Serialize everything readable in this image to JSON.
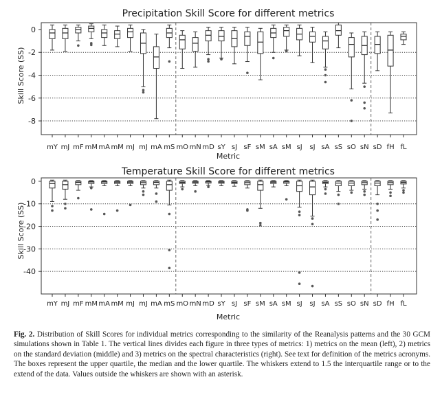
{
  "figure_label": "Fig. 2.",
  "caption": "Distribution of Skill Scores for individual metrics corresponding to the similarity of the Reanalysis patterns and the 30 GCM simulations shown in Table 1. The vertical lines divides each figure in three types of metrics: 1) metrics on the mean (left), 2) metrics on the standard deviation (middle) and 3) metrics on the spectral characteristics (right). See text for definition of the metrics acronyms. The boxes represent the upper quartile, the median and the lower quartile. The whiskers extend to 1.5 the interquartile range or to the extend of the data. Values outside the whiskers are shown with an asterisk.",
  "chart_data": [
    {
      "type": "box",
      "title": "Precipitation Skill Score for different metrics",
      "xlabel": "Metric",
      "ylabel": "Skill Score (SS)",
      "ylim": [
        -9.2,
        0.6
      ],
      "yticks": [
        0,
        -2,
        -4,
        -6,
        -8
      ],
      "grid": "dotted horizontal at ticks",
      "separators_after_index": [
        9,
        24
      ],
      "categories": [
        "mY",
        "mJ",
        "mF",
        "mM",
        "mA",
        "mM",
        "mJ",
        "mJ",
        "mA",
        "mS",
        "mO",
        "mN",
        "mD",
        "sY",
        "sJ",
        "sF",
        "sM",
        "sA",
        "sM",
        "sJ",
        "sJ",
        "sA",
        "sS",
        "sO",
        "sN",
        "sD",
        "fH",
        "fL"
      ],
      "boxes": [
        {
          "wlo": -1.8,
          "q1": -0.8,
          "med": -0.3,
          "q3": 0.0,
          "whi": 0.4,
          "out": []
        },
        {
          "wlo": -1.9,
          "q1": -0.8,
          "med": -0.3,
          "q3": 0.1,
          "whi": 0.4,
          "out": []
        },
        {
          "wlo": -1.0,
          "q1": -0.3,
          "med": 0.0,
          "q3": 0.2,
          "whi": 0.4,
          "out": [
            -1.4
          ]
        },
        {
          "wlo": -0.8,
          "q1": -0.2,
          "med": 0.1,
          "q3": 0.3,
          "whi": 0.5,
          "out": [
            -1.2,
            -1.35
          ]
        },
        {
          "wlo": -1.4,
          "q1": -0.7,
          "med": -0.3,
          "q3": 0.0,
          "whi": 0.4,
          "out": []
        },
        {
          "wlo": -1.5,
          "q1": -0.8,
          "med": -0.4,
          "q3": -0.1,
          "whi": 0.3,
          "out": []
        },
        {
          "wlo": -1.9,
          "q1": -0.7,
          "med": -0.2,
          "q3": 0.1,
          "whi": 0.4,
          "out": []
        },
        {
          "wlo": -5.0,
          "q1": -2.1,
          "med": -1.2,
          "q3": -0.3,
          "whi": 0.0,
          "out": [
            -5.3,
            -5.5
          ]
        },
        {
          "wlo": -7.8,
          "q1": -3.4,
          "med": -2.4,
          "q3": -1.5,
          "whi": -0.4,
          "out": []
        },
        {
          "wlo": -1.6,
          "q1": -0.7,
          "med": -0.3,
          "q3": 0.1,
          "whi": 0.4,
          "out": [
            -2.8
          ]
        },
        {
          "wlo": -3.4,
          "q1": -1.7,
          "med": -0.9,
          "q3": -0.5,
          "whi": -0.1,
          "out": []
        },
        {
          "wlo": -3.3,
          "q1": -1.9,
          "med": -1.2,
          "q3": -0.7,
          "whi": -0.2,
          "out": []
        },
        {
          "wlo": -2.2,
          "q1": -1.0,
          "med": -0.5,
          "q3": -0.1,
          "whi": 0.2,
          "out": [
            -2.6,
            -2.8
          ]
        },
        {
          "wlo": -2.5,
          "q1": -1.0,
          "med": -0.6,
          "q3": -0.1,
          "whi": 0.2,
          "out": [
            -2.6
          ]
        },
        {
          "wlo": -3.0,
          "q1": -1.5,
          "med": -0.8,
          "q3": -0.1,
          "whi": 0.2,
          "out": []
        },
        {
          "wlo": -2.8,
          "q1": -1.4,
          "med": -0.6,
          "q3": -0.2,
          "whi": 0.2,
          "out": [
            -3.8
          ]
        },
        {
          "wlo": -4.4,
          "q1": -2.1,
          "med": -1.1,
          "q3": -0.2,
          "whi": 0.1,
          "out": []
        },
        {
          "wlo": -2.0,
          "q1": -0.7,
          "med": -0.3,
          "q3": 0.1,
          "whi": 0.4,
          "out": [
            -2.5
          ]
        },
        {
          "wlo": -1.8,
          "q1": -0.6,
          "med": -0.1,
          "q3": 0.2,
          "whi": 0.4,
          "out": [
            -1.9
          ]
        },
        {
          "wlo": -2.3,
          "q1": -0.9,
          "med": -0.4,
          "q3": 0.1,
          "whi": 0.4,
          "out": []
        },
        {
          "wlo": -2.9,
          "q1": -1.1,
          "med": -0.6,
          "q3": -0.2,
          "whi": 0.2,
          "out": []
        },
        {
          "wlo": -3.3,
          "q1": -1.7,
          "med": -1.0,
          "q3": -0.6,
          "whi": -0.2,
          "out": [
            -3.5,
            -4.0,
            -4.6
          ]
        },
        {
          "wlo": -1.6,
          "q1": -0.5,
          "med": -0.1,
          "q3": 0.4,
          "whi": 0.6,
          "out": []
        },
        {
          "wlo": -5.2,
          "q1": -2.4,
          "med": -1.3,
          "q3": -0.7,
          "whi": -0.3,
          "out": [
            -6.2,
            -8.0
          ]
        },
        {
          "wlo": -4.7,
          "q1": -2.2,
          "med": -1.4,
          "q3": -0.6,
          "whi": -0.2,
          "out": [
            -5.0,
            -6.4,
            -6.9
          ]
        },
        {
          "wlo": -3.6,
          "q1": -2.1,
          "med": -1.3,
          "q3": -0.6,
          "whi": -0.2,
          "out": []
        },
        {
          "wlo": -7.3,
          "q1": -3.2,
          "med": -1.8,
          "q3": -0.5,
          "whi": -0.2,
          "out": []
        },
        {
          "wlo": -1.3,
          "q1": -0.9,
          "med": -0.6,
          "q3": -0.4,
          "whi": -0.2,
          "out": []
        }
      ]
    },
    {
      "type": "box",
      "title": "Temperature Skill Score for different metrics",
      "xlabel": "Metric",
      "ylabel": "Skill Score (SS)",
      "ylim": [
        -50,
        1.5
      ],
      "yticks": [
        0,
        -10,
        -20,
        -30,
        -40
      ],
      "grid": "dotted horizontal at ticks",
      "separators_after_index": [
        9,
        24
      ],
      "categories": [
        "mY",
        "mJ",
        "mF",
        "mM",
        "mA",
        "mM",
        "mJ",
        "mJ",
        "mA",
        "mS",
        "mO",
        "mN",
        "mD",
        "sY",
        "sJ",
        "sF",
        "sM",
        "sA",
        "sM",
        "sJ",
        "sJ",
        "sA",
        "sS",
        "sO",
        "sN",
        "sD",
        "fH",
        "fL"
      ],
      "boxes": [
        {
          "wlo": -9.0,
          "q1": -3.0,
          "med": -1.0,
          "q3": 0.0,
          "whi": 0.5,
          "out": [
            -11.0,
            -13.0
          ]
        },
        {
          "wlo": -8.0,
          "q1": -3.5,
          "med": -1.5,
          "q3": 0.0,
          "whi": 0.5,
          "out": [
            -10.0,
            -12.0
          ]
        },
        {
          "wlo": -4.0,
          "q1": -1.5,
          "med": -0.5,
          "q3": 0.0,
          "whi": 0.3,
          "out": [
            -7.5
          ]
        },
        {
          "wlo": -2.5,
          "q1": -1.0,
          "med": -0.3,
          "q3": 0.0,
          "whi": 0.3,
          "out": [
            -3.0,
            -12.5
          ]
        },
        {
          "wlo": -2.0,
          "q1": -1.0,
          "med": -0.3,
          "q3": 0.0,
          "whi": 0.3,
          "out": [
            -14.5
          ]
        },
        {
          "wlo": -2.0,
          "q1": -1.0,
          "med": -0.4,
          "q3": 0.0,
          "whi": 0.3,
          "out": [
            -13.0
          ]
        },
        {
          "wlo": -2.0,
          "q1": -1.0,
          "med": -0.4,
          "q3": 0.0,
          "whi": 0.3,
          "out": [
            -10.5
          ]
        },
        {
          "wlo": -3.0,
          "q1": -1.5,
          "med": -0.6,
          "q3": 0.0,
          "whi": 0.3,
          "out": [
            -4.5,
            -6.0
          ]
        },
        {
          "wlo": -3.0,
          "q1": -1.5,
          "med": -0.5,
          "q3": 0.0,
          "whi": 0.3,
          "out": [
            -5.5,
            -9.0
          ]
        },
        {
          "wlo": -10.5,
          "q1": -4.0,
          "med": -1.5,
          "q3": 0.0,
          "whi": 0.5,
          "out": [
            -14.5,
            -30.5,
            -38.5
          ]
        },
        {
          "wlo": -2.5,
          "q1": -1.0,
          "med": -0.5,
          "q3": 0.0,
          "whi": 0.3,
          "out": [
            -3.5
          ]
        },
        {
          "wlo": -2.0,
          "q1": -0.9,
          "med": -0.4,
          "q3": 0.0,
          "whi": 0.3,
          "out": [
            -4.5
          ]
        },
        {
          "wlo": -1.8,
          "q1": -0.8,
          "med": -0.3,
          "q3": 0.0,
          "whi": 0.3,
          "out": [
            -2.5
          ]
        },
        {
          "wlo": -2.0,
          "q1": -0.9,
          "med": -0.4,
          "q3": 0.0,
          "whi": 0.3,
          "out": []
        },
        {
          "wlo": -2.2,
          "q1": -1.0,
          "med": -0.5,
          "q3": 0.0,
          "whi": 0.3,
          "out": []
        },
        {
          "wlo": -3.0,
          "q1": -1.5,
          "med": -0.6,
          "q3": 0.0,
          "whi": 0.3,
          "out": [
            -12.5,
            -13.0
          ]
        },
        {
          "wlo": -12.0,
          "q1": -4.0,
          "med": -1.5,
          "q3": 0.0,
          "whi": 0.5,
          "out": [
            -18.5,
            -19.5
          ]
        },
        {
          "wlo": -2.5,
          "q1": -1.0,
          "med": -0.4,
          "q3": 0.0,
          "whi": 0.3,
          "out": []
        },
        {
          "wlo": -2.0,
          "q1": -0.9,
          "med": -0.3,
          "q3": 0.0,
          "whi": 0.3,
          "out": [
            -8.0
          ]
        },
        {
          "wlo": -11.5,
          "q1": -4.5,
          "med": -2.0,
          "q3": 0.0,
          "whi": 0.5,
          "out": [
            -13.5,
            -15.0,
            -40.5,
            -45.5
          ]
        },
        {
          "wlo": -15.5,
          "q1": -6.0,
          "med": -2.5,
          "q3": 0.0,
          "whi": 0.5,
          "out": [
            -16.5,
            -19.0,
            -46.5
          ]
        },
        {
          "wlo": -2.5,
          "q1": -1.0,
          "med": -0.5,
          "q3": 0.0,
          "whi": 0.3,
          "out": [
            -3.5,
            -5.5
          ]
        },
        {
          "wlo": -4.5,
          "q1": -2.0,
          "med": -0.8,
          "q3": 0.0,
          "whi": 0.3,
          "out": [
            -6.0,
            -10.0
          ]
        },
        {
          "wlo": -4.0,
          "q1": -2.0,
          "med": -0.8,
          "q3": 0.0,
          "whi": 0.3,
          "out": [
            -5.0
          ]
        },
        {
          "wlo": -3.5,
          "q1": -1.5,
          "med": -0.6,
          "q3": 0.0,
          "whi": 0.3,
          "out": [
            -4.5,
            -6.0
          ]
        },
        {
          "wlo": -6.0,
          "q1": -2.0,
          "med": -0.8,
          "q3": 0.0,
          "whi": 0.3,
          "out": [
            -10.0,
            -13.0,
            -17.0
          ]
        },
        {
          "wlo": -3.5,
          "q1": -1.5,
          "med": -0.6,
          "q3": 0.0,
          "whi": 0.3,
          "out": [
            -5.0,
            -6.5
          ]
        },
        {
          "wlo": -3.0,
          "q1": -1.2,
          "med": -0.5,
          "q3": 0.0,
          "whi": 0.3,
          "out": [
            -4.0,
            -5.0
          ]
        }
      ]
    }
  ]
}
